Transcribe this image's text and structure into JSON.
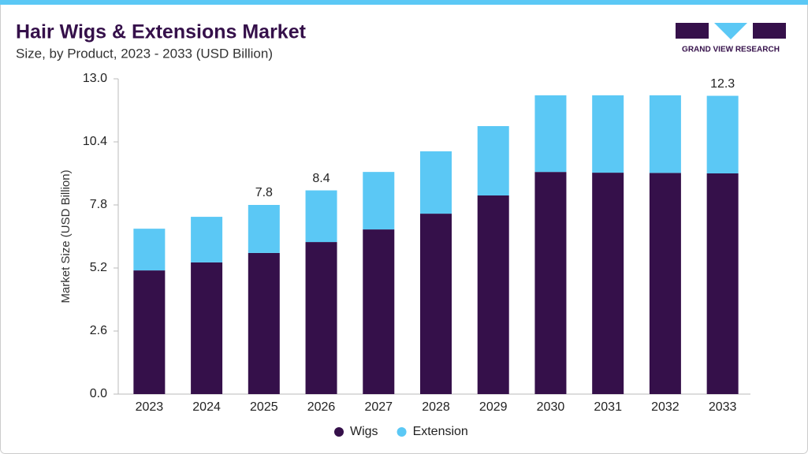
{
  "brand": "GRAND VIEW RESEARCH",
  "chart_data": {
    "type": "stacked_bar",
    "title": "Hair Wigs & Extensions Market",
    "subtitle": "Size, by Product, 2023 - 2033 (USD Billion)",
    "y_label": "Market Size (USD Billion)",
    "categories": [
      "2023",
      "2024",
      "2025",
      "2026",
      "2027",
      "2028",
      "2029",
      "2030",
      "2031",
      "2032",
      "2033"
    ],
    "series": [
      {
        "name": "Wigs",
        "color": "#35104a",
        "values": [
          5.1,
          5.43,
          5.82,
          6.27,
          6.79,
          7.44,
          8.19,
          9.16,
          9.13,
          9.12,
          9.1
        ]
      },
      {
        "name": "Extension",
        "color": "#5bc8f5",
        "values": [
          1.72,
          1.88,
          1.98,
          2.13,
          2.37,
          2.57,
          2.86,
          3.16,
          3.19,
          3.2,
          3.2
        ]
      }
    ],
    "annotations": [
      {
        "category": "2025",
        "value": 7.8
      },
      {
        "category": "2026",
        "value": 8.4
      },
      {
        "category": "2033",
        "value": 12.3
      }
    ],
    "ylim": [
      0,
      13
    ],
    "yticks": [
      {
        "value": 0,
        "label": "0.0"
      },
      2.6,
      5.2,
      7.8,
      10.4,
      {
        "value": 13,
        "label": "13.0"
      }
    ],
    "grid": false,
    "legend": "bottom"
  }
}
